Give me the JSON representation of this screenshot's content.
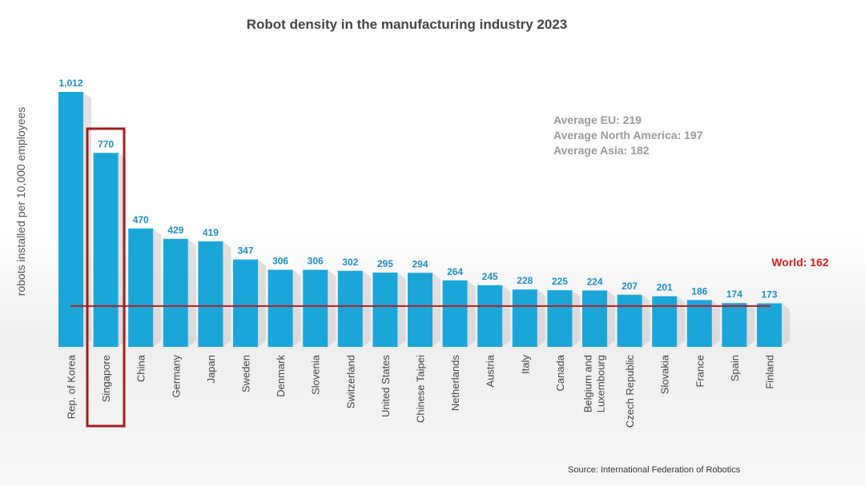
{
  "chart_data": {
    "type": "bar",
    "title": "Robot density in the manufacturing industry 2023",
    "ylabel": "robots installed per 10,000 employees",
    "xlabel": "",
    "categories": [
      "Rep. of Korea",
      "Singapore",
      "China",
      "Germany",
      "Japan",
      "Sweden",
      "Denmark",
      "Slovenia",
      "Switzerland",
      "United States",
      "Chinese Taipei",
      "Netherlands",
      "Austria",
      "Italy",
      "Canada",
      "Belgium and Luxembourg",
      "Czech Republic",
      "Slovakia",
      "France",
      "Spain",
      "Finland"
    ],
    "value_labels": [
      "1,012",
      "770",
      "470",
      "429",
      "419",
      "347",
      "306",
      "306",
      "302",
      "295",
      "294",
      "264",
      "245",
      "228",
      "225",
      "224",
      "207",
      "201",
      "186",
      "174",
      "173"
    ],
    "values": [
      1012,
      770,
      470,
      429,
      419,
      347,
      306,
      306,
      302,
      295,
      294,
      264,
      245,
      228,
      225,
      224,
      207,
      201,
      186,
      174,
      173
    ],
    "ylim": [
      0,
      1012
    ],
    "grid": false,
    "highlight_category": "Singapore",
    "reference_line": {
      "label": "World: 162",
      "value": 162,
      "color": "#b71c1c"
    },
    "averages": [
      "Average EU: 219",
      "Average North America: 197",
      "Average Asia: 182"
    ],
    "source": "Source: International Federation of Robotics",
    "colors": {
      "bar": "#1ba6da",
      "value_label": "#1a8fc4",
      "highlight_box": "#a51b1b",
      "world_line": "#b71c1c",
      "world_label": "#cc1f1f"
    }
  }
}
